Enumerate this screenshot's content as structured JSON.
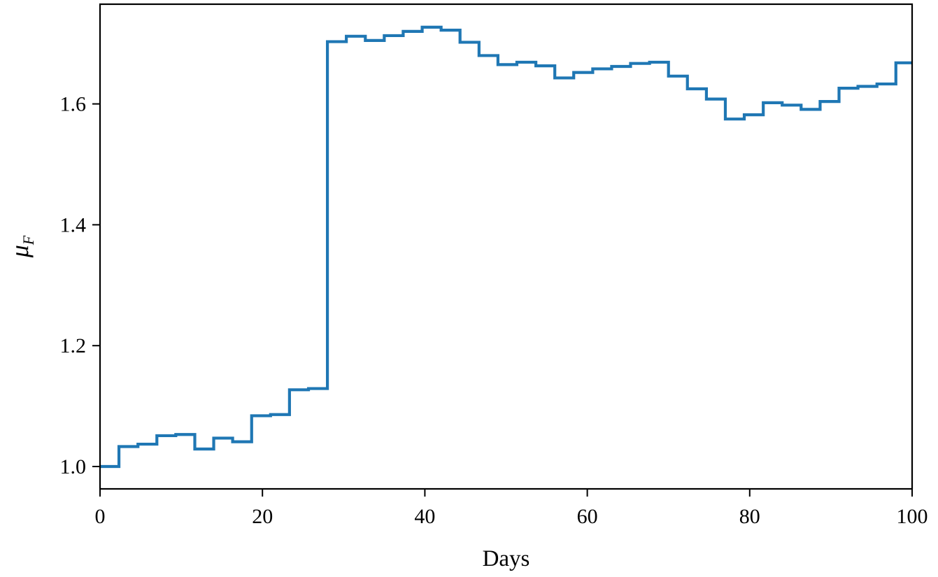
{
  "chart_data": {
    "type": "line",
    "style": "step",
    "xlabel": "Days",
    "ylabel": "μ",
    "ylabel_subscript": "F",
    "xlim": [
      0,
      100
    ],
    "ylim": [
      0.963,
      1.765
    ],
    "xticks": [
      0,
      20,
      40,
      60,
      80,
      100
    ],
    "yticks": [
      1.0,
      1.2,
      1.4,
      1.6
    ],
    "xtick_labels": [
      "0",
      "20",
      "40",
      "60",
      "80",
      "100"
    ],
    "ytick_labels": [
      "1.0",
      "1.2",
      "1.4",
      "1.6"
    ],
    "grid": false,
    "legend": "none",
    "series": [
      {
        "color": "#1f77b4",
        "x": [
          0,
          2.33,
          4.67,
          7.0,
          9.33,
          11.67,
          14.0,
          16.33,
          18.67,
          21.0,
          23.33,
          25.67,
          28.0,
          30.33,
          32.67,
          35.0,
          37.33,
          39.67,
          42.0,
          44.33,
          46.67,
          49.0,
          51.33,
          53.67,
          56.0,
          58.33,
          60.67,
          63.0,
          65.33,
          67.67,
          70.0,
          72.33,
          74.67,
          77.0,
          79.33,
          81.67,
          84.0,
          86.33,
          88.67,
          91.0,
          93.33,
          95.67,
          98.0,
          100.0
        ],
        "y": [
          1.0,
          1.033,
          1.037,
          1.051,
          1.053,
          1.029,
          1.047,
          1.041,
          1.084,
          1.086,
          1.127,
          1.129,
          1.703,
          1.712,
          1.705,
          1.713,
          1.72,
          1.727,
          1.722,
          1.702,
          1.68,
          1.665,
          1.669,
          1.663,
          1.643,
          1.652,
          1.658,
          1.662,
          1.667,
          1.669,
          1.646,
          1.625,
          1.608,
          1.575,
          1.582,
          1.602,
          1.598,
          1.591,
          1.604,
          1.626,
          1.629,
          1.633,
          1.668,
          1.668
        ]
      }
    ]
  }
}
